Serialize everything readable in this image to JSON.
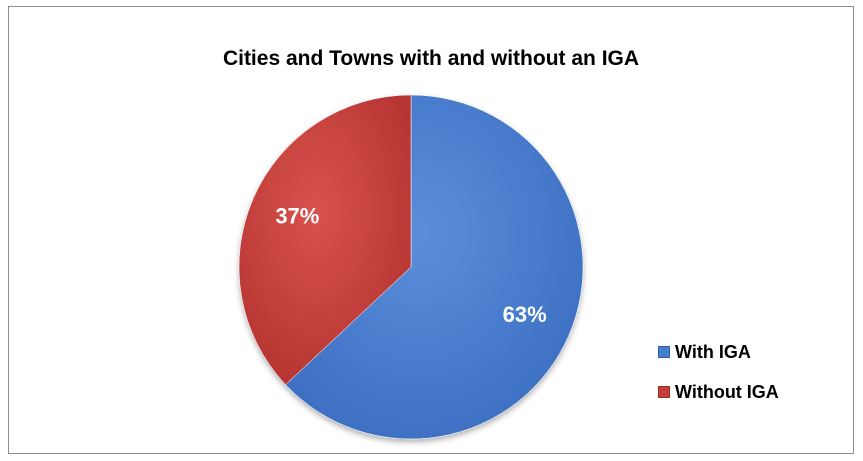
{
  "chart_data": {
    "type": "pie",
    "title": "Cities and Towns with and without an IGA",
    "categories": [
      "With IGA",
      "Without IGA"
    ],
    "values": [
      63,
      37
    ],
    "data_labels": [
      "63%",
      "37%"
    ],
    "colors": [
      "#4a7fcf",
      "#c63f3b"
    ],
    "legend_position": "bottom-right"
  }
}
